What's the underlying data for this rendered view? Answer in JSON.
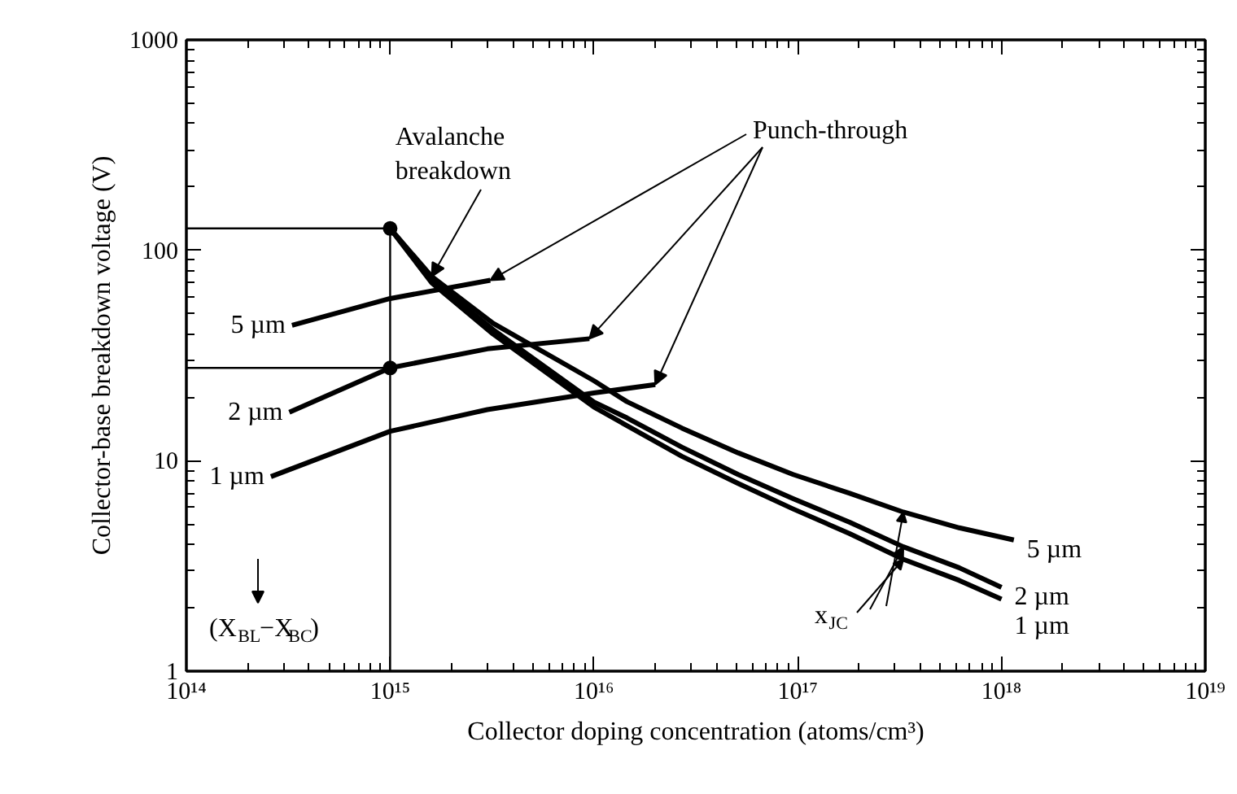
{
  "chart_data": {
    "type": "line",
    "xlabel": "Collector doping concentration (atoms/cm³)",
    "ylabel": "Collector-base breakdown voltage (V)",
    "log": "xy",
    "grid": false,
    "line_style": "solid",
    "legend": "left",
    "xlim": [
      100000000000000.0,
      1e+19
    ],
    "ylim": [
      1,
      1000
    ],
    "xticks": [
      {
        "value": 100000000000000.0,
        "label": "10¹⁴"
      },
      {
        "value": 1000000000000000.0,
        "label": "10¹⁵"
      },
      {
        "value": 1e+16,
        "label": "10¹⁶"
      },
      {
        "value": 1e+17,
        "label": "10¹⁷"
      },
      {
        "value": 1e+18,
        "label": "10¹⁸"
      },
      {
        "value": 1e+19,
        "label": "10¹⁹"
      }
    ],
    "yticks": [
      1,
      10,
      100,
      1000
    ],
    "annotations": [
      {
        "text": "Avalanche breakdown",
        "x": 1600000000000000.0,
        "y": 75
      },
      {
        "text": "Punch-through",
        "x": 3100000000000000.0,
        "y": 72
      },
      "(X$_{BL}$−X$_{BC}$)",
      {
        "text": "x$_{JC}$",
        "x": 3.3e+17,
        "y": 3.4
      }
    ],
    "series": [
      {
        "name": "5 µm",
        "color": "#000000",
        "x": [
          330000000000000.0,
          1000000000000000.0,
          3100000000000000.0
        ],
        "values": [
          44,
          59,
          72
        ]
      },
      {
        "name": "2 µm",
        "color": "#000000",
        "x": [
          320000000000000.0,
          1000000000000000.0,
          3000000000000000.0,
          9500000000000000.0
        ],
        "values": [
          17,
          27.6,
          34,
          38
        ]
      },
      {
        "name": "1 µm",
        "color": "#000000",
        "x": [
          260000000000000.0,
          1000000000000000.0,
          3000000000000000.0,
          1e+16,
          2e+16
        ],
        "values": [
          8.4,
          13.8,
          17.5,
          21,
          23
        ]
      },
      {
        "name": "5 µm",
        "color": "#000000",
        "x": [
          1000000000000000.0,
          1600000000000000.0,
          3200000000000000.0,
          1e+16,
          1.45e+16,
          2.7e+16,
          5.1e+16,
          9.5e+16,
          1.8e+17,
          3.3e+17,
          6.2e+17,
          1.15e+18
        ],
        "values": [
          127,
          75,
          45,
          24,
          19.1,
          14.3,
          10.9,
          8.6,
          7.0,
          5.7,
          4.8,
          4.2
        ]
      },
      {
        "name": "2 µm",
        "color": "#000000",
        "x": [
          1000000000000000.0,
          1600000000000000.0,
          3200000000000000.0,
          1e+16,
          1.45e+16,
          2.7e+16,
          5.1e+16,
          9.5e+16,
          1.8e+17,
          3.3e+17,
          6.2e+17,
          1e+18
        ],
        "values": [
          127,
          72,
          42,
          19,
          16,
          11.6,
          8.6,
          6.6,
          5.1,
          3.9,
          3.1,
          2.5
        ]
      },
      {
        "name": "1 µm",
        "color": "#000000",
        "x": [
          1000000000000000.0,
          1600000000000000.0,
          3200000000000000.0,
          1e+16,
          1.45e+16,
          2.7e+16,
          5.1e+16,
          9.5e+16,
          1.8e+17,
          3.3e+17,
          6.2e+17,
          1e+18
        ],
        "values": [
          127,
          70,
          40,
          18,
          14.7,
          10.5,
          7.8,
          5.9,
          4.5,
          3.4,
          2.7,
          2.2
        ]
      },
      {
        "color": "#000000",
        "x": [
          100000000000000.0,
          1000000000000000.0,
          1000000000000000.0
        ],
        "values": [
          127,
          127,
          1
        ]
      },
      {
        "color": "#000000",
        "x": [
          100000000000000.0,
          1000000000000000.0
        ],
        "values": [
          27.6,
          27.6
        ]
      },
      {
        "type": "scatter",
        "marker": "circle",
        "color": "#000000",
        "x": [
          1000000000000000.0,
          1000000000000000.0
        ],
        "values": [
          127,
          27.6
        ]
      }
    ]
  }
}
